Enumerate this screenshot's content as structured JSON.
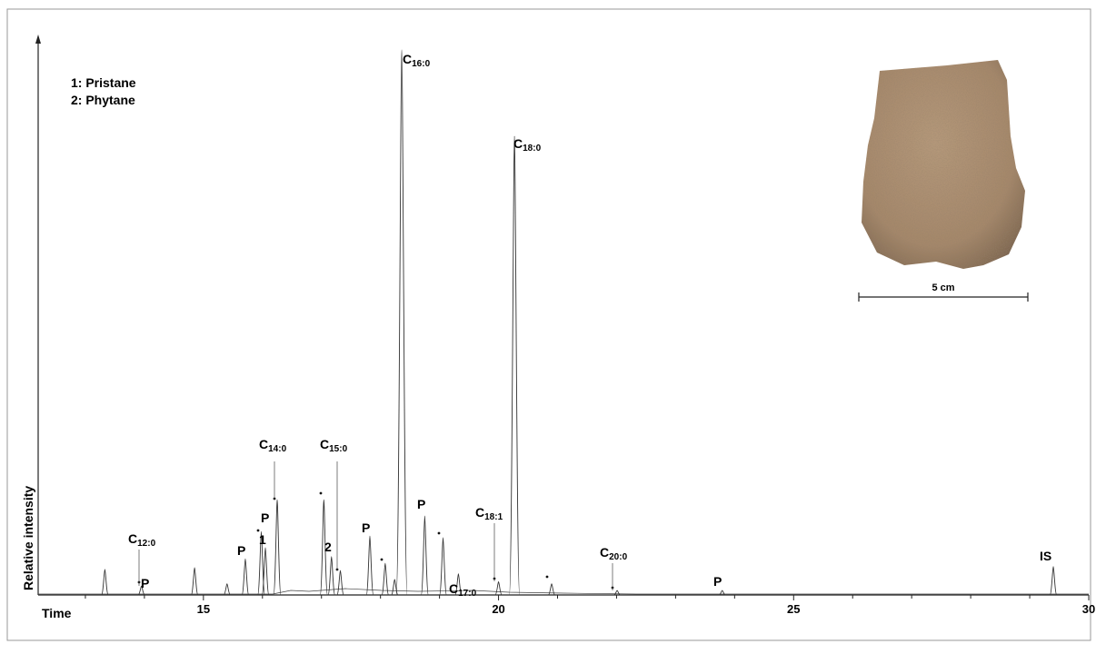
{
  "chart_data": {
    "type": "chromatogram",
    "xlabel": "Time",
    "ylabel": "Relative intensity",
    "xlim": [
      12.2,
      30
    ],
    "ylim": [
      0,
      100
    ],
    "xticks": [
      15,
      20,
      25,
      30
    ],
    "xminorticks": [
      13,
      14,
      16,
      17,
      18,
      19,
      21,
      22,
      23,
      24,
      26,
      27,
      28,
      29
    ],
    "color": "#333333",
    "x": [
      13.33,
      13.95,
      14.85,
      15.4,
      15.71,
      15.98,
      16.05,
      16.25,
      17.04,
      17.17,
      17.32,
      17.82,
      18.08,
      18.24,
      18.36,
      18.75,
      19.06,
      19.32,
      20.0,
      20.27,
      20.9,
      22.01,
      23.79,
      29.4
    ],
    "values": [
      4.6,
      1.6,
      4.9,
      2,
      6.5,
      11.4,
      8.5,
      17.1,
      17.1,
      6.9,
      4.4,
      10.6,
      5.7,
      2.8,
      97.9,
      14.2,
      10.3,
      3.8,
      2.4,
      82.4,
      2,
      0.8,
      0.8,
      5.1
    ],
    "annotations": [
      {
        "text": "C",
        "sub": "12:0"
      },
      {
        "text": "P"
      },
      {
        "text": "P"
      },
      {
        "text": "P"
      },
      {
        "text": "1"
      },
      {
        "text": "C",
        "sub": "14:0"
      },
      {
        "text": "C",
        "sub": "15:0"
      },
      {
        "text": "2"
      },
      {
        "text": "C",
        "sub": "16:0"
      },
      {
        "text": "P"
      },
      {
        "text": "P"
      },
      {
        "text": "C",
        "sub": "17:0"
      },
      {
        "text": "C",
        "sub": "18:1"
      },
      {
        "text": "C",
        "sub": "18:0"
      },
      {
        "text": "C",
        "sub": "20:0"
      },
      {
        "text": "P"
      },
      {
        "text": "IS"
      }
    ],
    "legend": [
      "1: Pristane",
      "2: Phytane"
    ],
    "scale_bar": "5 cm"
  }
}
